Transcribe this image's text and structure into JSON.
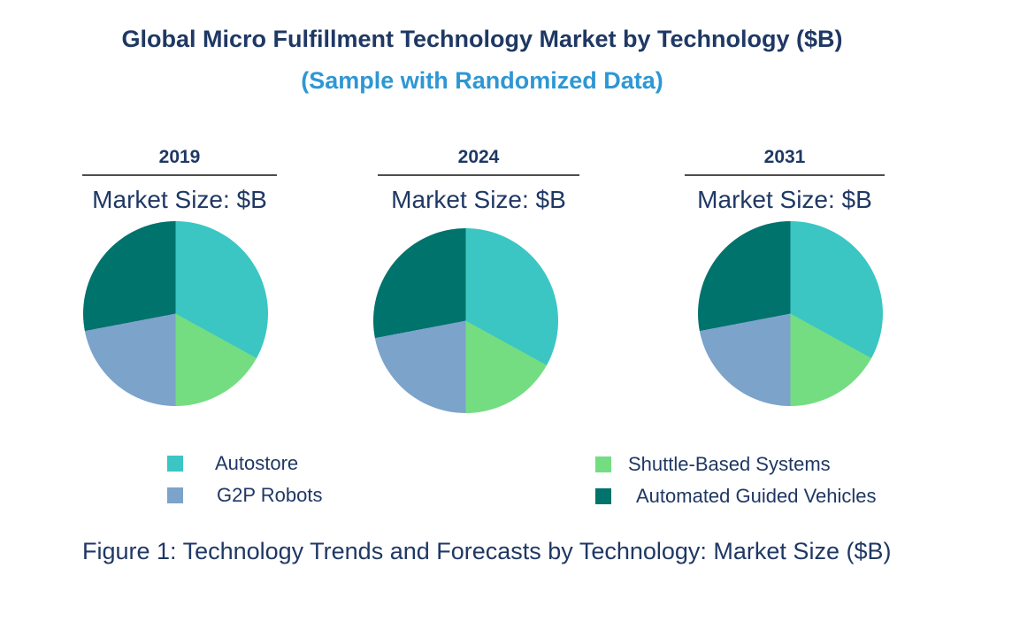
{
  "colors": {
    "text_navy": "#1F3864",
    "subtitle_blue": "#2E97D4",
    "underline_gray": "#4d4d4d",
    "background": "#ffffff"
  },
  "header": {
    "title": "Global Micro Fulfillment Technology Market by Technology ($B)",
    "subtitle": "(Sample with Randomized Data)"
  },
  "chart_data": [
    {
      "type": "pie",
      "year": "2019",
      "label": "Market Size: $B",
      "start_angle_deg": 0,
      "direction": "clockwise",
      "slices": [
        {
          "label": "Autostore",
          "pct": 33,
          "color": "#3BC6C4"
        },
        {
          "label": "Shuttle-Based Systems",
          "pct": 17,
          "color": "#74DD82"
        },
        {
          "label": "G2P Robots",
          "pct": 22,
          "color": "#7CA3CA"
        },
        {
          "label": "Automated Guided Vehicles",
          "pct": 28,
          "color": "#00736C"
        }
      ]
    },
    {
      "type": "pie",
      "year": "2024",
      "label": "Market Size: $B",
      "start_angle_deg": 0,
      "direction": "clockwise",
      "slices": [
        {
          "label": "Autostore",
          "pct": 33,
          "color": "#3BC6C4"
        },
        {
          "label": "Shuttle-Based Systems",
          "pct": 17,
          "color": "#74DD82"
        },
        {
          "label": "G2P Robots",
          "pct": 22,
          "color": "#7CA3CA"
        },
        {
          "label": "Automated Guided Vehicles",
          "pct": 28,
          "color": "#00736C"
        }
      ]
    },
    {
      "type": "pie",
      "year": "2031",
      "label": "Market Size: $B",
      "start_angle_deg": 0,
      "direction": "clockwise",
      "slices": [
        {
          "label": "Autostore",
          "pct": 33,
          "color": "#3BC6C4"
        },
        {
          "label": "Shuttle-Based Systems",
          "pct": 17,
          "color": "#74DD82"
        },
        {
          "label": "G2P Robots",
          "pct": 22,
          "color": "#7CA3CA"
        },
        {
          "label": "Automated Guided Vehicles",
          "pct": 28,
          "color": "#00736C"
        }
      ]
    }
  ],
  "legend": {
    "items": [
      {
        "label": "Autostore",
        "color": "#3BC6C4"
      },
      {
        "label": "G2P Robots",
        "color": "#7CA3CA"
      },
      {
        "label": "Shuttle-Based Systems",
        "color": "#74DD82"
      },
      {
        "label": "Automated Guided Vehicles",
        "color": "#00736C"
      }
    ]
  },
  "caption": "Figure 1: Technology Trends and Forecasts by Technology: Market Size ($B)"
}
